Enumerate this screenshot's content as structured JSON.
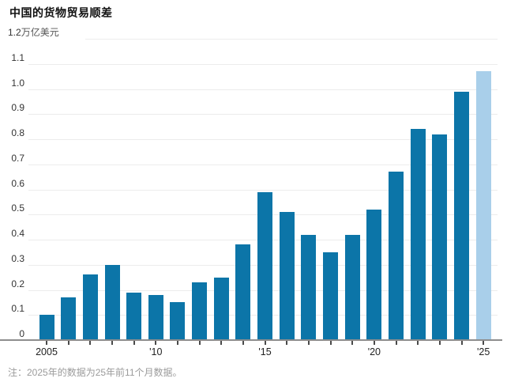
{
  "header": {
    "title": "中国的货物贸易顺差"
  },
  "note": "注：2025年的数据为25年前11个月数据。",
  "chart_data": {
    "type": "bar",
    "title": "中国的货物贸易顺差",
    "unit_top_tick": "1.2",
    "unit_suffix": "万亿美元",
    "categories": [
      2005,
      2006,
      2007,
      2008,
      2009,
      2010,
      2011,
      2012,
      2013,
      2014,
      2015,
      2016,
      2017,
      2018,
      2019,
      2020,
      2021,
      2022,
      2023,
      2024,
      2025
    ],
    "values": [
      0.1,
      0.17,
      0.26,
      0.3,
      0.19,
      0.18,
      0.15,
      0.23,
      0.25,
      0.38,
      0.59,
      0.51,
      0.42,
      0.35,
      0.42,
      0.52,
      0.67,
      0.84,
      0.82,
      0.99,
      1.07
    ],
    "highlight_index": 20,
    "ylim": [
      0,
      1.2
    ],
    "y_ticks": [
      "0",
      "0.1",
      "0.2",
      "0.3",
      "0.4",
      "0.5",
      "0.6",
      "0.7",
      "0.8",
      "0.9",
      "1.0",
      "1.1"
    ],
    "x_ticks": [
      {
        "i": 0,
        "label": "2005"
      },
      {
        "i": 5,
        "label": "'10"
      },
      {
        "i": 10,
        "label": "'15"
      },
      {
        "i": 15,
        "label": "'20"
      },
      {
        "i": 20,
        "label": "'25"
      }
    ],
    "grid": "horizontal",
    "legend_position": "none",
    "colors": {
      "bar": "#0c75a8",
      "highlight": "#a9cfea",
      "grid": "#ececec",
      "axis": "#8e8e8e"
    }
  }
}
